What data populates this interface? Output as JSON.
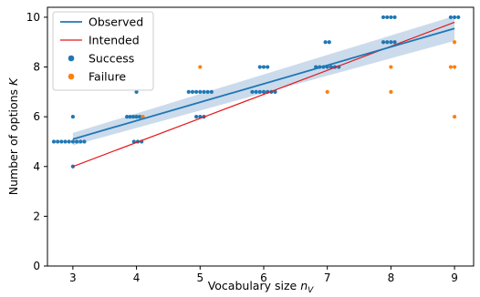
{
  "chart_data": {
    "type": "scatter",
    "xlabel": "Vocabulary size n_V",
    "ylabel": "Number of options K",
    "xlim": [
      2.6,
      9.3
    ],
    "ylim": [
      0,
      10.4
    ],
    "xticks": [
      3,
      4,
      5,
      6,
      7,
      8,
      9
    ],
    "yticks": [
      0,
      2,
      4,
      6,
      8,
      10
    ],
    "grid": false,
    "legend_position": "top-left",
    "colors": {
      "observed": "#1f77b4",
      "intended": "#e31a1c",
      "success": "#1f77b4",
      "failure": "#ff7f0e",
      "band": "#b9cfe6"
    },
    "observed": {
      "name": "Observed",
      "x": [
        3,
        9
      ],
      "y": [
        5.1,
        9.55
      ],
      "ci_lower": [
        4.85,
        9.05
      ],
      "ci_upper": [
        5.35,
        10.05
      ]
    },
    "intended": {
      "name": "Intended",
      "x": [
        3,
        9
      ],
      "y": [
        4.0,
        9.8
      ]
    },
    "success": {
      "name": "Success",
      "points": [
        [
          2.7,
          5
        ],
        [
          2.76,
          5
        ],
        [
          2.82,
          5
        ],
        [
          2.88,
          5
        ],
        [
          2.94,
          5
        ],
        [
          3.0,
          5
        ],
        [
          3.06,
          5
        ],
        [
          3.12,
          5
        ],
        [
          3.18,
          5
        ],
        [
          3.0,
          6
        ],
        [
          3.0,
          4
        ],
        [
          3.85,
          6
        ],
        [
          3.9,
          6
        ],
        [
          3.95,
          6
        ],
        [
          4.0,
          6
        ],
        [
          4.05,
          6
        ],
        [
          4.0,
          7
        ],
        [
          3.96,
          5
        ],
        [
          4.02,
          5
        ],
        [
          4.08,
          5
        ],
        [
          4.82,
          7
        ],
        [
          4.88,
          7
        ],
        [
          4.94,
          7
        ],
        [
          5.0,
          7
        ],
        [
          5.06,
          7
        ],
        [
          5.12,
          7
        ],
        [
          5.18,
          7
        ],
        [
          4.94,
          6
        ],
        [
          5.0,
          6
        ],
        [
          5.06,
          6
        ],
        [
          5.94,
          8
        ],
        [
          6.0,
          8
        ],
        [
          6.06,
          8
        ],
        [
          5.82,
          7
        ],
        [
          5.88,
          7
        ],
        [
          5.94,
          7
        ],
        [
          6.0,
          7
        ],
        [
          6.06,
          7
        ],
        [
          6.12,
          7
        ],
        [
          6.18,
          7
        ],
        [
          6.82,
          8
        ],
        [
          6.88,
          8
        ],
        [
          6.94,
          8
        ],
        [
          7.0,
          8
        ],
        [
          7.06,
          8
        ],
        [
          7.12,
          8
        ],
        [
          7.18,
          8
        ],
        [
          6.97,
          9
        ],
        [
          7.03,
          9
        ],
        [
          7.88,
          10
        ],
        [
          7.94,
          10
        ],
        [
          8.0,
          10
        ],
        [
          8.06,
          10
        ],
        [
          7.88,
          9
        ],
        [
          7.94,
          9
        ],
        [
          8.0,
          9
        ],
        [
          8.06,
          9
        ],
        [
          8.94,
          10
        ],
        [
          9.0,
          10
        ],
        [
          9.06,
          10
        ]
      ]
    },
    "failure": {
      "name": "Failure",
      "points": [
        [
          4.1,
          6
        ],
        [
          5.0,
          8
        ],
        [
          7.0,
          7
        ],
        [
          8.0,
          8
        ],
        [
          8.0,
          7
        ],
        [
          8.94,
          8
        ],
        [
          9.0,
          8
        ],
        [
          9.0,
          9
        ],
        [
          9.0,
          6
        ]
      ]
    }
  }
}
